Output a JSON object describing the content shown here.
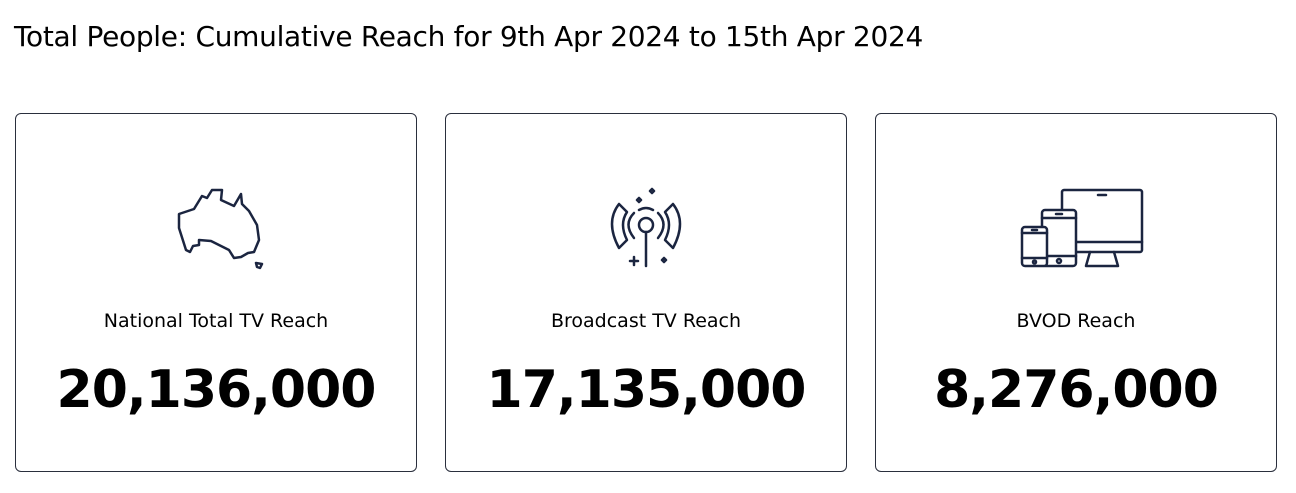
{
  "title": "Total People: Cumulative Reach for 9th Apr 2024 to 15th Apr 2024",
  "cards": [
    {
      "icon": "australia-map-icon",
      "label": "National Total TV Reach",
      "value": "20,136,000"
    },
    {
      "icon": "broadcast-antenna-icon",
      "label": "Broadcast TV Reach",
      "value": "17,135,000"
    },
    {
      "icon": "devices-icon",
      "label": "BVOD Reach",
      "value": "8,276,000"
    }
  ],
  "colors": {
    "icon": "#1b2540",
    "border": "#2a2f3d"
  }
}
